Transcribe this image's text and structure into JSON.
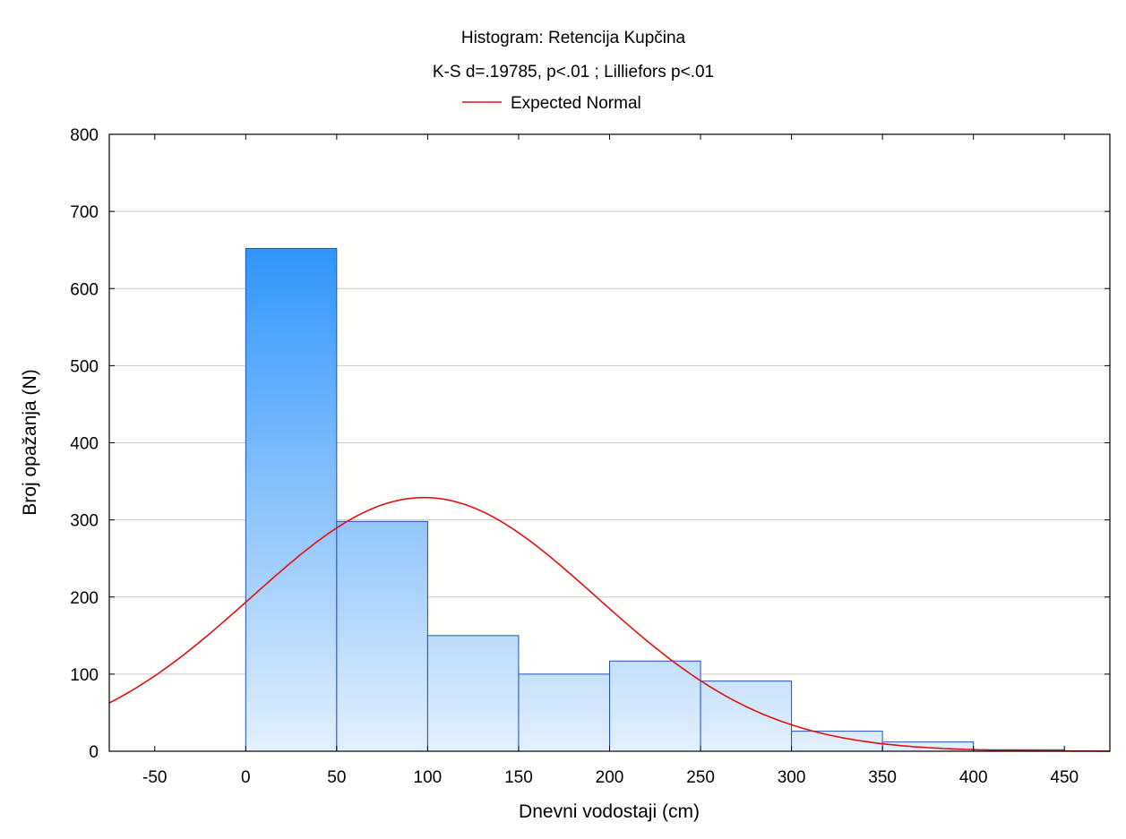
{
  "chart_data": {
    "type": "bar",
    "title": "Histogram: Retencija Kupčina",
    "subtitle": "K-S d=.19785, p<.01 ; Lilliefors p<.01",
    "xlabel": "Dnevni vodostaji (cm)",
    "ylabel": "Broj opažanja (N)",
    "xlim": [
      -75,
      475
    ],
    "ylim": [
      0,
      800
    ],
    "x_ticks": [
      "-50",
      "0",
      "50",
      "100",
      "150",
      "200",
      "250",
      "300",
      "350",
      "400",
      "450"
    ],
    "y_ticks": [
      "0",
      "100",
      "200",
      "300",
      "400",
      "500",
      "600",
      "700",
      "800"
    ],
    "grid": "horizontal",
    "bins": [
      {
        "from": 0,
        "to": 50,
        "count": 652
      },
      {
        "from": 50,
        "to": 100,
        "count": 298
      },
      {
        "from": 100,
        "to": 150,
        "count": 150
      },
      {
        "from": 150,
        "to": 200,
        "count": 100
      },
      {
        "from": 200,
        "to": 250,
        "count": 117
      },
      {
        "from": 250,
        "to": 300,
        "count": 91
      },
      {
        "from": 300,
        "to": 350,
        "count": 26
      },
      {
        "from": 350,
        "to": 400,
        "count": 12
      },
      {
        "from": 400,
        "to": 450,
        "count": 2
      }
    ],
    "expected_normal": {
      "name": "Expected Normal",
      "mean": 98,
      "sd": 95,
      "peak": 329,
      "color": "#e01010"
    },
    "bar_color_top": "#2f95fb",
    "bar_color_bottom": "#e3f0fd",
    "bar_stroke": "#1f4fbf",
    "legend": {
      "label": "Expected Normal",
      "position": "top"
    }
  }
}
